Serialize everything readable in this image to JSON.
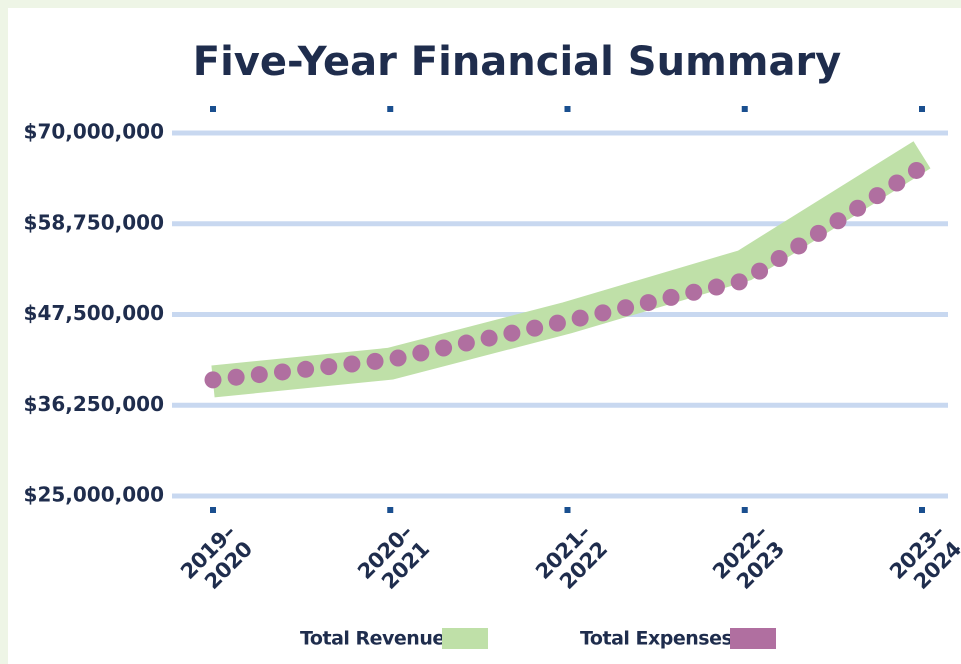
{
  "chart_data": {
    "type": "line",
    "title": "Five-Year Financial Summary",
    "categories": [
      "2019–2020",
      "2020–2021",
      "2021–2022",
      "2022–2023",
      "2023–2024"
    ],
    "series": [
      {
        "name": "Total Revenue",
        "color": "#bfe0a8",
        "values": [
          39200000,
          41400000,
          47100000,
          53600000,
          67300000
        ]
      },
      {
        "name": "Total Expenses",
        "color": "#b06fa0",
        "values": [
          39400000,
          41900000,
          46700000,
          51700000,
          65800000
        ]
      }
    ],
    "ylim": [
      25000000,
      70000000
    ],
    "yticks": [
      {
        "value": 25000000,
        "label": "$25,000,000"
      },
      {
        "value": 36250000,
        "label": "$36,250,000"
      },
      {
        "value": 47500000,
        "label": "$47,500,000"
      },
      {
        "value": 58750000,
        "label": "$58,750,000"
      },
      {
        "value": 70000000,
        "label": "$70,000,000"
      }
    ],
    "grid": true,
    "legend": "bottom"
  }
}
